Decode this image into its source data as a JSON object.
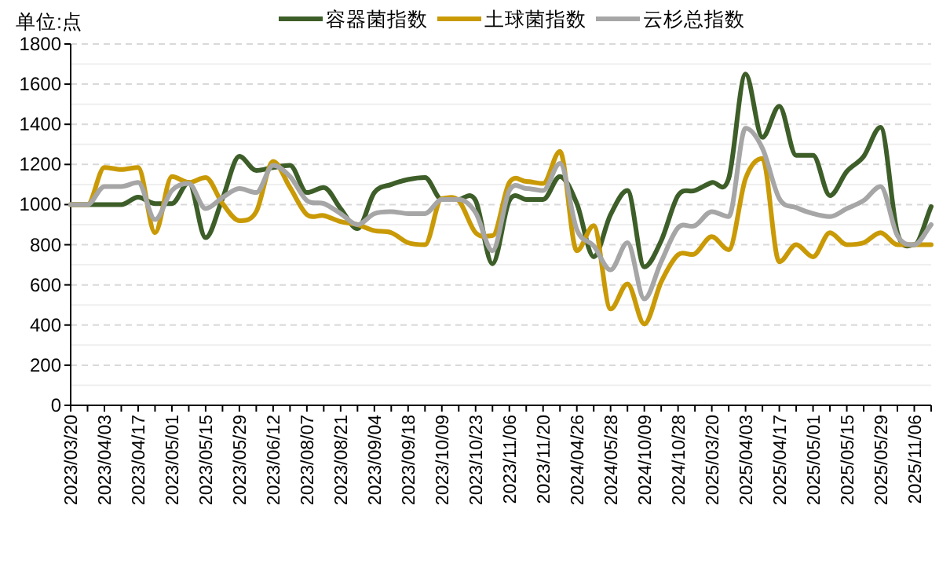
{
  "chart_data": {
    "type": "line",
    "title": "单位:点",
    "categories": [
      "2023/03/20",
      null,
      "2023/04/03",
      null,
      "2023/04/17",
      null,
      "2023/05/01",
      null,
      "2023/05/15",
      null,
      "2023/05/29",
      null,
      "2023/06/12",
      null,
      "2023/08/07",
      null,
      "2023/08/21",
      null,
      "2023/09/04",
      null,
      "2023/09/18",
      null,
      "2023/10/09",
      null,
      "2023/10/23",
      null,
      "2023/11/06",
      null,
      "2023/11/20",
      null,
      "2024/04/26",
      null,
      "2024/05/28",
      null,
      "2024/10/09",
      null,
      "2024/10/28",
      null,
      "2025/03/20",
      null,
      "2025/04/03",
      null,
      "2025/04/17",
      null,
      "2025/05/01",
      null,
      "2025/05/15",
      null,
      "2025/05/29",
      null,
      "2025/11/06",
      null
    ],
    "series": [
      {
        "name": "容器菌指数",
        "color": "#3d5e28",
        "values": [
          1000,
          1000,
          1000,
          1000,
          1037,
          1005,
          1005,
          1110,
          835,
          1030,
          1240,
          1170,
          1185,
          1195,
          1060,
          1085,
          980,
          880,
          1060,
          1100,
          1125,
          1135,
          1025,
          1025,
          1020,
          705,
          1020,
          1025,
          1025,
          1140,
          1005,
          740,
          950,
          1070,
          690,
          820,
          1045,
          1070,
          1110,
          1130,
          1650,
          1335,
          1490,
          1245,
          1245,
          1045,
          1165,
          1240,
          1385,
          860,
          800,
          990
        ]
      },
      {
        "name": "土球菌指数",
        "color": "#c99a06",
        "values": [
          1000,
          1000,
          1185,
          1175,
          1185,
          860,
          1140,
          1110,
          1135,
          1005,
          920,
          965,
          1215,
          1085,
          950,
          945,
          915,
          900,
          870,
          860,
          810,
          800,
          1030,
          1020,
          860,
          845,
          1110,
          1115,
          1105,
          1265,
          770,
          895,
          480,
          605,
          405,
          615,
          750,
          755,
          840,
          775,
          1130,
          1230,
          715,
          800,
          740,
          860,
          800,
          810,
          860,
          800,
          800,
          800
        ]
      },
      {
        "name": "云杉总指数",
        "color": "#a6a6a6",
        "values": [
          1000,
          1000,
          1090,
          1090,
          1110,
          925,
          1070,
          1105,
          980,
          1035,
          1080,
          1060,
          1195,
          1140,
          1020,
          1005,
          955,
          900,
          955,
          965,
          955,
          955,
          1025,
          1025,
          960,
          770,
          1070,
          1080,
          1070,
          1205,
          875,
          795,
          675,
          810,
          530,
          715,
          885,
          895,
          965,
          940,
          1380,
          1280,
          1030,
          985,
          955,
          940,
          980,
          1020,
          1090,
          845,
          800,
          900
        ]
      }
    ],
    "ylim": [
      0,
      1800
    ],
    "yticks": [
      0,
      200,
      400,
      600,
      800,
      1000,
      1200,
      1400,
      1600,
      1800
    ],
    "grid": "y",
    "legend": "top",
    "marker": "none",
    "line_style": "solid"
  }
}
